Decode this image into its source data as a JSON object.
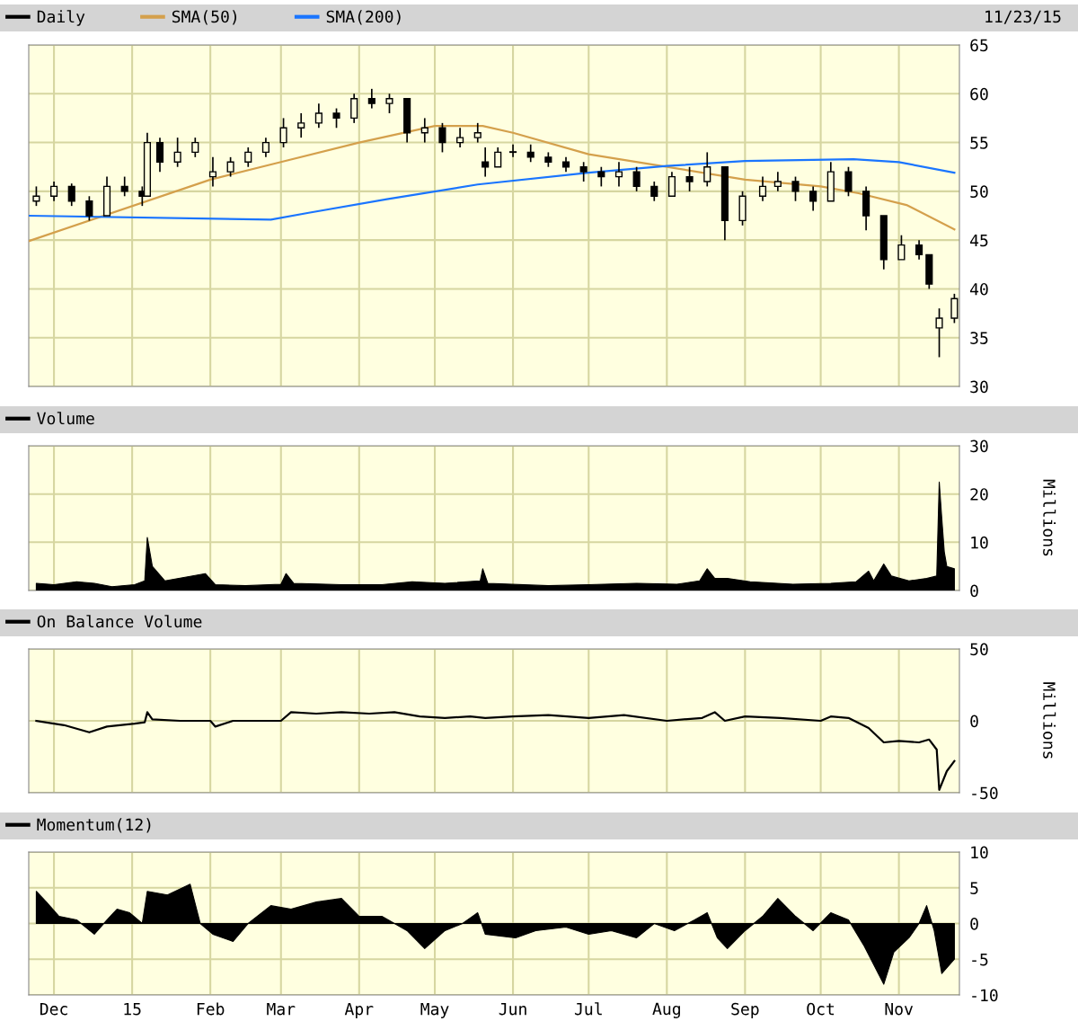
{
  "chart_data": [
    {
      "type": "candlestick",
      "annotations": [
        "11/23/15"
      ],
      "legend": "top left",
      "grid": true,
      "tick_labels": "y",
      "xlim": [
        "2014-11-21",
        "2015-11-25"
      ],
      "xticks": [
        {
          "value": "2014-12-01",
          "label": null
        },
        {
          "value": "2015-01-01",
          "label": null
        },
        {
          "value": "2015-02-01",
          "label": null
        },
        {
          "value": "2015-03-01",
          "label": null
        },
        {
          "value": "2015-04-01",
          "label": null
        },
        {
          "value": "2015-05-01",
          "label": null
        },
        {
          "value": "2015-06-01",
          "label": null
        },
        {
          "value": "2015-07-01",
          "label": null
        },
        {
          "value": "2015-08-01",
          "label": null
        },
        {
          "value": "2015-09-01",
          "label": null
        },
        {
          "value": "2015-10-01",
          "label": null
        },
        {
          "value": "2015-11-01",
          "label": null
        }
      ],
      "ylim": [
        30,
        65
      ],
      "yticks": [
        30,
        35,
        40,
        45,
        50,
        55,
        60,
        65
      ],
      "series": [
        {
          "name": "Daily",
          "type": "candlestick",
          "color": "#000000",
          "x": [
            "2014-11-24",
            "2014-12-01",
            "2014-12-08",
            "2014-12-15",
            "2014-12-22",
            "2014-12-29",
            "2015-01-05",
            "2015-01-07",
            "2015-01-12",
            "2015-01-19",
            "2015-01-26",
            "2015-02-02",
            "2015-02-09",
            "2015-02-16",
            "2015-02-23",
            "2015-03-02",
            "2015-03-09",
            "2015-03-16",
            "2015-03-23",
            "2015-03-30",
            "2015-04-06",
            "2015-04-13",
            "2015-04-20",
            "2015-04-27",
            "2015-05-04",
            "2015-05-11",
            "2015-05-18",
            "2015-05-21",
            "2015-05-26",
            "2015-06-01",
            "2015-06-08",
            "2015-06-15",
            "2015-06-22",
            "2015-06-29",
            "2015-07-06",
            "2015-07-13",
            "2015-07-20",
            "2015-07-27",
            "2015-08-03",
            "2015-08-10",
            "2015-08-17",
            "2015-08-24",
            "2015-08-31",
            "2015-09-08",
            "2015-09-14",
            "2015-09-21",
            "2015-09-28",
            "2015-10-05",
            "2015-10-12",
            "2015-10-19",
            "2015-10-26",
            "2015-11-02",
            "2015-11-09",
            "2015-11-13",
            "2015-11-17",
            "2015-11-23"
          ],
          "ohlc": [
            [
              49,
              50.5,
              48.5,
              49.5
            ],
            [
              49.5,
              51,
              49,
              50.5
            ],
            [
              50.5,
              50.8,
              48.5,
              49
            ],
            [
              49,
              49.5,
              47,
              47.5
            ],
            [
              47.5,
              51.5,
              47.5,
              50.5
            ],
            [
              50.5,
              51.5,
              49.5,
              50
            ],
            [
              50,
              50.5,
              48.5,
              49.5
            ],
            [
              49.5,
              56,
              49.5,
              55
            ],
            [
              55,
              55.5,
              52,
              53
            ],
            [
              53,
              55.5,
              52.5,
              54
            ],
            [
              54,
              55.5,
              53.5,
              55
            ],
            [
              51.5,
              53.5,
              50.5,
              52
            ],
            [
              52,
              53.5,
              51.5,
              53
            ],
            [
              53,
              54.5,
              52.5,
              54
            ],
            [
              54,
              55.5,
              53.5,
              55
            ],
            [
              55,
              57.5,
              54.5,
              56.5
            ],
            [
              56.5,
              58,
              55.5,
              57
            ],
            [
              57,
              59,
              56.5,
              58
            ],
            [
              58,
              58.5,
              56.5,
              57.5
            ],
            [
              57.5,
              60,
              57,
              59.5
            ],
            [
              59.5,
              60.5,
              58.5,
              59
            ],
            [
              59,
              60,
              58,
              59.5
            ],
            [
              59.5,
              59.5,
              55,
              56
            ],
            [
              56,
              57.5,
              55,
              56.5
            ],
            [
              56.5,
              57,
              54,
              55
            ],
            [
              55,
              56.5,
              54.5,
              55.5
            ],
            [
              55.5,
              57,
              55,
              56
            ],
            [
              53,
              54.5,
              51.5,
              52.5
            ],
            [
              52.5,
              54.5,
              52.5,
              54
            ],
            [
              54,
              54.8,
              53.5,
              54
            ],
            [
              54,
              54.8,
              53,
              53.5
            ],
            [
              53.5,
              54,
              52.5,
              53
            ],
            [
              53,
              53.5,
              52,
              52.5
            ],
            [
              52.5,
              53,
              51,
              52
            ],
            [
              52,
              52.5,
              50.5,
              51.5
            ],
            [
              51.5,
              53,
              50.5,
              52
            ],
            [
              52,
              52.5,
              50,
              50.5
            ],
            [
              50.5,
              51,
              49,
              49.5
            ],
            [
              49.5,
              52,
              49.5,
              51.5
            ],
            [
              51.5,
              52.5,
              50,
              51
            ],
            [
              51,
              54,
              50.5,
              52.5
            ],
            [
              52.5,
              52.5,
              45,
              47
            ],
            [
              47,
              50,
              46.5,
              49.5
            ],
            [
              49.5,
              51.5,
              49,
              50.5
            ],
            [
              50.5,
              52,
              50,
              51
            ],
            [
              51,
              51.5,
              49,
              50
            ],
            [
              50,
              50.5,
              48,
              49
            ],
            [
              49,
              53,
              49,
              52
            ],
            [
              52,
              52.5,
              49.5,
              50
            ],
            [
              50,
              50.5,
              46,
              47.5
            ],
            [
              47.5,
              47.5,
              42,
              43
            ],
            [
              43,
              45.5,
              43,
              44.5
            ],
            [
              44.5,
              45,
              43,
              43.5
            ],
            [
              43.5,
              43.5,
              40,
              40.5
            ],
            [
              36,
              38,
              33,
              37
            ],
            [
              37,
              39.5,
              36.5,
              39
            ]
          ]
        },
        {
          "name": "SMA(50)",
          "type": "line",
          "color": "#d4a04c",
          "x": [
            "2014-11-21",
            "2015-02-01",
            "2015-03-01",
            "2015-04-01",
            "2015-05-01",
            "2015-05-20",
            "2015-06-01",
            "2015-07-01",
            "2015-08-01",
            "2015-09-01",
            "2015-10-01",
            "2015-10-16",
            "2015-11-04",
            "2015-11-23"
          ],
          "values": [
            44.9,
            51.2,
            53,
            55,
            56.7,
            56.7,
            56,
            53.8,
            52.5,
            51.2,
            50.5,
            49.8,
            48.6,
            46.1
          ]
        },
        {
          "name": "SMA(200)",
          "type": "line",
          "color": "#1a75ff",
          "x": [
            "2014-11-21",
            "2015-02-25",
            "2015-03-12",
            "2015-04-12",
            "2015-05-18",
            "2015-07-01",
            "2015-08-01",
            "2015-09-01",
            "2015-10-14",
            "2015-11-01",
            "2015-11-23"
          ],
          "values": [
            47.5,
            47.1,
            47.8,
            49.2,
            50.7,
            51.9,
            52.6,
            53.1,
            53.3,
            53,
            51.9
          ]
        }
      ]
    },
    {
      "type": "area",
      "ylabel": "Millions",
      "legend": "top left",
      "grid": true,
      "tick_labels": "y",
      "xlim": [
        "2014-11-21",
        "2015-11-25"
      ],
      "xticks": [
        {
          "value": "2014-12-01",
          "label": null
        },
        {
          "value": "2015-01-01",
          "label": null
        },
        {
          "value": "2015-02-01",
          "label": null
        },
        {
          "value": "2015-03-01",
          "label": null
        },
        {
          "value": "2015-04-01",
          "label": null
        },
        {
          "value": "2015-05-01",
          "label": null
        },
        {
          "value": "2015-06-01",
          "label": null
        },
        {
          "value": "2015-07-01",
          "label": null
        },
        {
          "value": "2015-08-01",
          "label": null
        },
        {
          "value": "2015-09-01",
          "label": null
        },
        {
          "value": "2015-10-01",
          "label": null
        },
        {
          "value": "2015-11-01",
          "label": null
        }
      ],
      "ylim": [
        0,
        30
      ],
      "yticks": [
        0,
        10,
        20,
        30
      ],
      "series": [
        {
          "name": "Volume",
          "color": "#000000",
          "x": [
            "2014-11-24",
            "2014-12-01",
            "2014-12-10",
            "2014-12-17",
            "2014-12-24",
            "2015-01-02",
            "2015-01-06",
            "2015-01-07",
            "2015-01-09",
            "2015-01-14",
            "2015-01-30",
            "2015-02-03",
            "2015-02-15",
            "2015-03-01",
            "2015-03-03",
            "2015-03-06",
            "2015-03-25",
            "2015-04-10",
            "2015-04-22",
            "2015-05-05",
            "2015-05-19",
            "2015-05-20",
            "2015-05-22",
            "2015-06-15",
            "2015-07-01",
            "2015-07-20",
            "2015-08-05",
            "2015-08-14",
            "2015-08-17",
            "2015-08-20",
            "2015-08-25",
            "2015-09-03",
            "2015-09-20",
            "2015-10-05",
            "2015-10-15",
            "2015-10-20",
            "2015-10-22",
            "2015-10-26",
            "2015-10-29",
            "2015-11-05",
            "2015-11-12",
            "2015-11-16",
            "2015-11-17",
            "2015-11-18",
            "2015-11-19",
            "2015-11-20",
            "2015-11-23"
          ],
          "values": [
            1.5,
            1.2,
            1.8,
            1.5,
            0.8,
            1.2,
            2,
            11,
            5,
            2,
            3.5,
            1.2,
            1,
            1.3,
            3.5,
            1.5,
            1.2,
            1.2,
            1.8,
            1.5,
            2,
            4.5,
            1.5,
            1,
            1.2,
            1.5,
            1.3,
            2,
            4.5,
            2.5,
            2.5,
            1.8,
            1.3,
            1.5,
            1.8,
            4,
            2,
            5.5,
            3,
            2,
            2.5,
            3,
            22.5,
            15,
            8,
            5,
            4.5
          ]
        }
      ]
    },
    {
      "type": "line",
      "ylabel": "Millions",
      "legend": "top left",
      "grid": true,
      "tick_labels": "y",
      "xlim": [
        "2014-11-21",
        "2015-11-25"
      ],
      "xticks": [
        {
          "value": "2014-12-01",
          "label": null
        },
        {
          "value": "2015-01-01",
          "label": null
        },
        {
          "value": "2015-02-01",
          "label": null
        },
        {
          "value": "2015-03-01",
          "label": null
        },
        {
          "value": "2015-04-01",
          "label": null
        },
        {
          "value": "2015-05-01",
          "label": null
        },
        {
          "value": "2015-06-01",
          "label": null
        },
        {
          "value": "2015-07-01",
          "label": null
        },
        {
          "value": "2015-08-01",
          "label": null
        },
        {
          "value": "2015-09-01",
          "label": null
        },
        {
          "value": "2015-10-01",
          "label": null
        },
        {
          "value": "2015-11-01",
          "label": null
        }
      ],
      "ylim": [
        -50,
        50
      ],
      "yticks": [
        -50,
        0,
        50
      ],
      "series": [
        {
          "name": "On Balance Volume",
          "color": "#000000",
          "x": [
            "2014-11-24",
            "2014-12-05",
            "2014-12-15",
            "2014-12-22",
            "2015-01-02",
            "2015-01-06",
            "2015-01-07",
            "2015-01-09",
            "2015-01-20",
            "2015-02-01",
            "2015-02-03",
            "2015-02-10",
            "2015-02-20",
            "2015-03-01",
            "2015-03-05",
            "2015-03-15",
            "2015-03-25",
            "2015-04-05",
            "2015-04-15",
            "2015-04-25",
            "2015-05-05",
            "2015-05-15",
            "2015-05-21",
            "2015-06-01",
            "2015-06-15",
            "2015-07-01",
            "2015-07-15",
            "2015-08-01",
            "2015-08-15",
            "2015-08-20",
            "2015-08-24",
            "2015-09-01",
            "2015-09-15",
            "2015-10-01",
            "2015-10-05",
            "2015-10-12",
            "2015-10-20",
            "2015-10-26",
            "2015-11-01",
            "2015-11-09",
            "2015-11-13",
            "2015-11-16",
            "2015-11-17",
            "2015-11-20",
            "2015-11-23"
          ],
          "values": [
            0,
            -3,
            -8,
            -4,
            -2,
            -1,
            6,
            1,
            0,
            0,
            -4,
            0,
            0,
            0,
            6,
            5,
            6,
            5,
            6,
            3,
            2,
            3,
            2,
            3,
            4,
            2,
            4,
            0,
            2,
            6,
            0,
            3,
            2,
            0,
            3,
            2,
            -5,
            -15,
            -14,
            -15,
            -13,
            -20,
            -48,
            -35,
            -28
          ]
        }
      ]
    },
    {
      "type": "area",
      "legend": "top left",
      "grid": true,
      "xlim": [
        "2014-11-21",
        "2015-11-25"
      ],
      "xticks": [
        {
          "value": "2014-12-01",
          "label": "Dec"
        },
        {
          "value": "2015-01-01",
          "label": "15"
        },
        {
          "value": "2015-02-01",
          "label": "Feb"
        },
        {
          "value": "2015-03-01",
          "label": "Mar"
        },
        {
          "value": "2015-04-01",
          "label": "Apr"
        },
        {
          "value": "2015-05-01",
          "label": "May"
        },
        {
          "value": "2015-06-01",
          "label": "Jun"
        },
        {
          "value": "2015-07-01",
          "label": "Jul"
        },
        {
          "value": "2015-08-01",
          "label": "Aug"
        },
        {
          "value": "2015-09-01",
          "label": "Sep"
        },
        {
          "value": "2015-10-01",
          "label": "Oct"
        },
        {
          "value": "2015-11-01",
          "label": "Nov"
        }
      ],
      "ylim": [
        -10,
        10
      ],
      "yticks": [
        -10,
        -5,
        0,
        5,
        10
      ],
      "series": [
        {
          "name": "Momentum(12)",
          "color": "#000000",
          "x": [
            "2014-11-24",
            "2014-11-28",
            "2014-12-03",
            "2014-12-10",
            "2014-12-17",
            "2014-12-22",
            "2014-12-26",
            "2014-12-31",
            "2015-01-05",
            "2015-01-07",
            "2015-01-15",
            "2015-01-24",
            "2015-01-28",
            "2015-02-02",
            "2015-02-10",
            "2015-02-16",
            "2015-02-25",
            "2015-03-05",
            "2015-03-15",
            "2015-03-25",
            "2015-04-01",
            "2015-04-10",
            "2015-04-20",
            "2015-04-27",
            "2015-05-05",
            "2015-05-12",
            "2015-05-18",
            "2015-05-21",
            "2015-06-02",
            "2015-06-10",
            "2015-06-22",
            "2015-07-01",
            "2015-07-10",
            "2015-07-20",
            "2015-07-27",
            "2015-08-04",
            "2015-08-12",
            "2015-08-17",
            "2015-08-21",
            "2015-08-25",
            "2015-09-01",
            "2015-09-08",
            "2015-09-14",
            "2015-09-21",
            "2015-09-28",
            "2015-10-05",
            "2015-10-12",
            "2015-10-18",
            "2015-10-26",
            "2015-10-30",
            "2015-11-05",
            "2015-11-09",
            "2015-11-12",
            "2015-11-15",
            "2015-11-18",
            "2015-11-23"
          ],
          "values": [
            4.5,
            3,
            1,
            0.5,
            -1.5,
            0.5,
            2,
            1.5,
            0,
            4.5,
            4,
            5.5,
            0,
            -1.5,
            -2.5,
            0,
            2.5,
            2,
            3,
            3.5,
            1,
            1,
            -1,
            -3.5,
            -1,
            0,
            1.5,
            -1.5,
            -2,
            -1,
            -0.5,
            -1.5,
            -1,
            -2,
            0,
            -1,
            0.5,
            1.5,
            -2,
            -3.5,
            -1,
            1,
            3.5,
            1,
            -1,
            1.5,
            0.5,
            -3,
            -8.5,
            -4,
            -2,
            0,
            2.5,
            -1,
            -7,
            -5
          ]
        }
      ]
    }
  ]
}
